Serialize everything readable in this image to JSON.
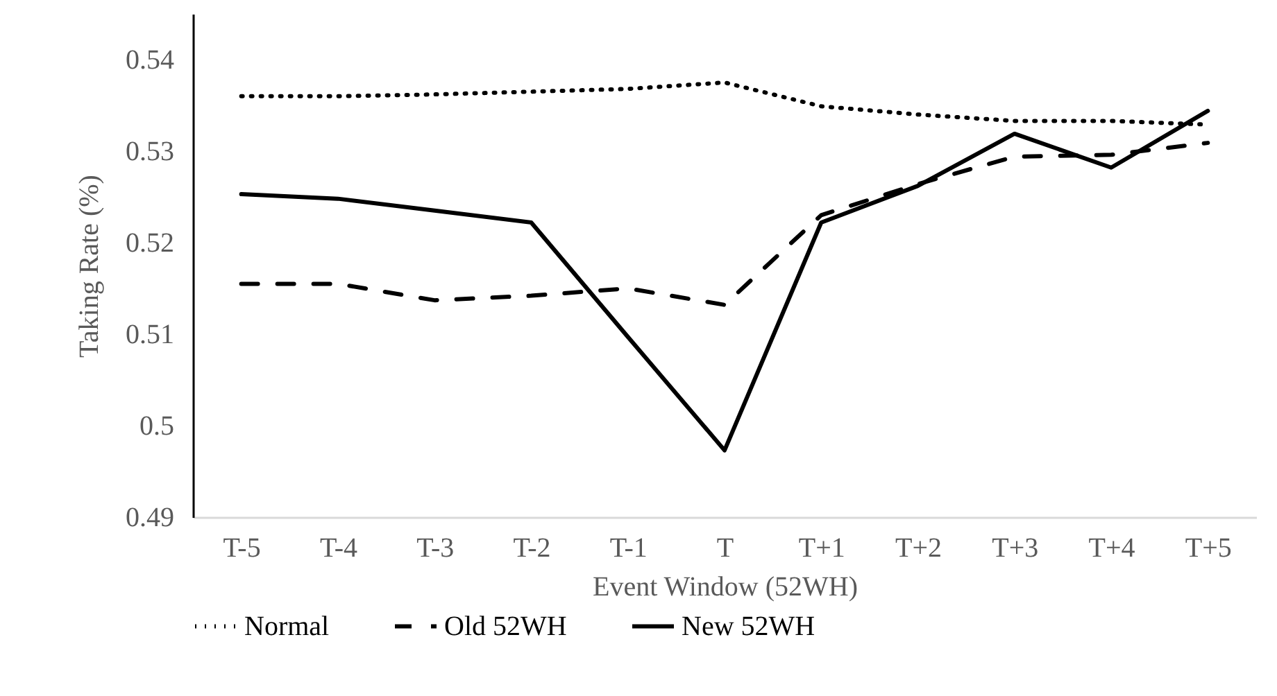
{
  "chart_data": {
    "type": "line",
    "xlabel": "Event Window (52WH)",
    "ylabel": "Taking Rate (%)",
    "categories": [
      "T-5",
      "T-4",
      "T-3",
      "T-2",
      "T-1",
      "T",
      "T+1",
      "T+2",
      "T+3",
      "T+4",
      "T+5"
    ],
    "series": [
      {
        "name": "Normal",
        "color": "#000000",
        "line_style": "dotted",
        "values": [
          0.536,
          0.536,
          0.5362,
          0.5365,
          0.5368,
          0.5375,
          0.5349,
          0.534,
          0.5333,
          0.5333,
          0.5329
        ]
      },
      {
        "name": "Old 52WH",
        "color": "#000000",
        "line_style": "dashed",
        "values": [
          0.5155,
          0.5155,
          0.5137,
          0.5142,
          0.515,
          0.5132,
          0.523,
          0.5264,
          0.5294,
          0.5296,
          0.5309
        ]
      },
      {
        "name": "New 52WH",
        "color": "#000000",
        "line_style": "solid",
        "values": [
          0.5253,
          0.5248,
          0.5235,
          0.5222,
          0.5097,
          0.4973,
          0.5222,
          0.5262,
          0.5319,
          0.5282,
          0.5344
        ]
      }
    ],
    "ylim": [
      0.49,
      0.545
    ],
    "yticks": [
      0.49,
      0.5,
      0.51,
      0.52,
      0.53,
      0.54
    ],
    "legend": "bottom",
    "grid": false
  }
}
